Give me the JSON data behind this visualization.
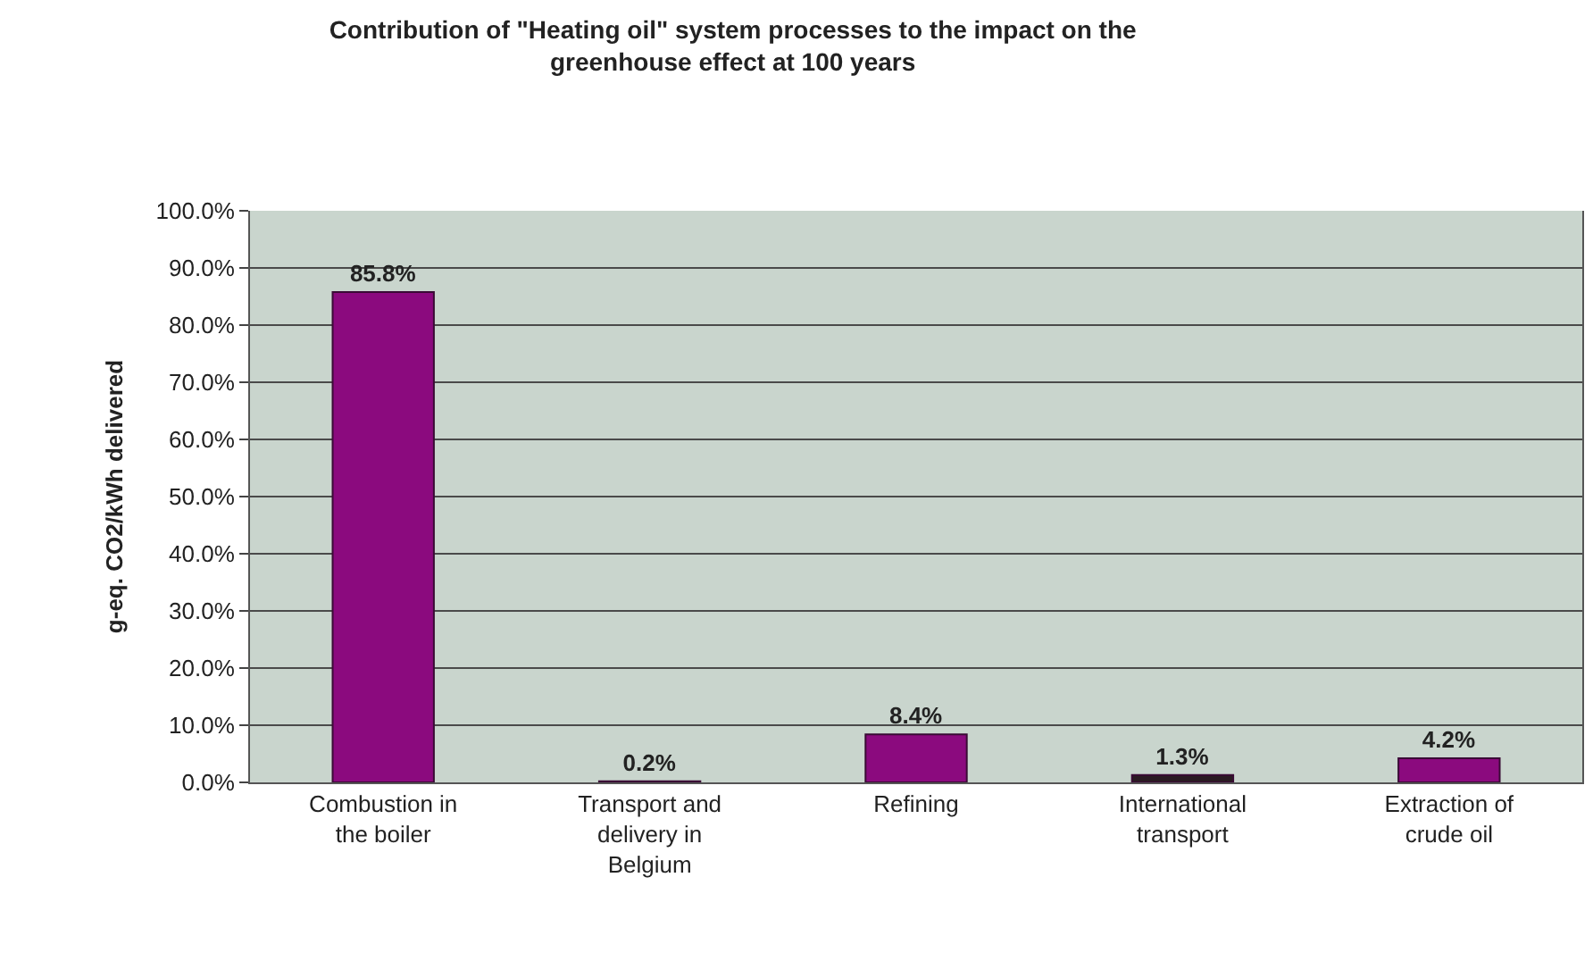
{
  "chart_data": {
    "type": "bar",
    "title": "Contribution of \"Heating oil\" system processes to the impact on the greenhouse effect at 100 years",
    "ylabel": "g-eq. CO2/kWh delivered",
    "categories": [
      "Combustion in the boiler",
      "Transport and delivery in Belgium",
      "Refining",
      "International transport",
      "Extraction of crude oil"
    ],
    "values": [
      85.8,
      0.2,
      8.4,
      1.3,
      4.2
    ],
    "value_labels": [
      "85.8%",
      "0.2%",
      "8.4%",
      "1.3%",
      "4.2%"
    ],
    "colors": [
      "#8b0a7e",
      "#8b0a7e",
      "#8b0a7e",
      "#2a1a22",
      "#8b0a7e"
    ],
    "ylim": [
      0,
      100
    ],
    "yticks": [
      {
        "value": 0,
        "label": "0.0%"
      },
      {
        "value": 10,
        "label": "10.0%"
      },
      {
        "value": 20,
        "label": "20.0%"
      },
      {
        "value": 30,
        "label": "30.0%"
      },
      {
        "value": 40,
        "label": "40.0%"
      },
      {
        "value": 50,
        "label": "50.0%"
      },
      {
        "value": 60,
        "label": "60.0%"
      },
      {
        "value": 70,
        "label": "70.0%"
      },
      {
        "value": 80,
        "label": "80.0%"
      },
      {
        "value": 90,
        "label": "90.0%"
      },
      {
        "value": 100,
        "label": "100.0%"
      }
    ],
    "grid": "y"
  }
}
